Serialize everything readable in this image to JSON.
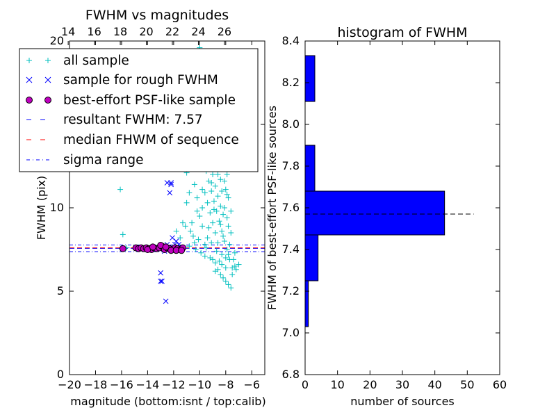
{
  "chart_data": [
    {
      "type": "scatter",
      "title": "FWHM vs magnitudes",
      "xlabel": "magnitude (bottom:isnt / top:calib)",
      "ylabel": "FWHM (pix)",
      "xlim": [
        -20,
        -5
      ],
      "ylim": [
        0,
        20
      ],
      "x_ticks": [
        "−20",
        "−18",
        "−16",
        "−14",
        "−12",
        "−10",
        "−8",
        "−6"
      ],
      "x_tick_values": [
        -20,
        -18,
        -16,
        -14,
        -12,
        -10,
        -8,
        -6
      ],
      "y_ticks": [
        "0",
        "5",
        "10",
        "15",
        "20"
      ],
      "y_tick_values": [
        0,
        5,
        10,
        15,
        20
      ],
      "top_axis": {
        "ticks": [
          "14",
          "16",
          "18",
          "20",
          "22",
          "24",
          "26"
        ],
        "tick_values": [
          14,
          16,
          18,
          20,
          22,
          24,
          26
        ],
        "offset": 34.1
      },
      "legend_placement": "upper-left",
      "series": [
        {
          "name": "all sample",
          "marker": "+",
          "color": "#00bfbf",
          "points": [
            [
              -16.1,
              11.1
            ],
            [
              -15.9,
              8.4
            ],
            [
              -15.6,
              7.6
            ],
            [
              -10.0,
              19.6
            ],
            [
              -9.6,
              19.2
            ],
            [
              -9.0,
              16.0
            ],
            [
              -8.9,
              14.5
            ],
            [
              -8.7,
              13.8
            ],
            [
              -8.5,
              14.2
            ],
            [
              -8.2,
              15.0
            ],
            [
              -8.0,
              13.9
            ],
            [
              -10.5,
              12.6
            ],
            [
              -11.0,
              12.1
            ],
            [
              -10.4,
              11.4
            ],
            [
              -9.8,
              11.1
            ],
            [
              -10.8,
              10.9
            ],
            [
              -11.0,
              10.3
            ],
            [
              -10.6,
              9.1
            ],
            [
              -10.2,
              9.8
            ],
            [
              -11.3,
              9.1
            ],
            [
              -11.1,
              8.9
            ],
            [
              -10.5,
              8.3
            ],
            [
              -11.5,
              8.2
            ],
            [
              -11.8,
              8.6
            ],
            [
              -11.7,
              7.6
            ],
            [
              -11.2,
              7.6
            ],
            [
              -10.8,
              7.7
            ],
            [
              -10.3,
              7.5
            ],
            [
              -9.6,
              7.8
            ],
            [
              -9.2,
              7.0
            ],
            [
              -9.0,
              6.9
            ],
            [
              -8.8,
              6.7
            ],
            [
              -8.6,
              6.3
            ],
            [
              -8.4,
              6.0
            ],
            [
              -8.2,
              5.8
            ],
            [
              -8.0,
              5.6
            ],
            [
              -7.8,
              5.4
            ],
            [
              -7.6,
              5.2
            ],
            [
              -7.5,
              6.0
            ],
            [
              -7.3,
              6.5
            ],
            [
              -7.7,
              6.9
            ],
            [
              -7.9,
              7.5
            ],
            [
              -8.1,
              8.0
            ],
            [
              -8.3,
              8.6
            ],
            [
              -8.5,
              9.2
            ],
            [
              -8.7,
              9.8
            ],
            [
              -8.9,
              10.4
            ],
            [
              -9.1,
              11.0
            ],
            [
              -9.3,
              11.6
            ],
            [
              -9.5,
              12.2
            ],
            [
              -9.7,
              12.8
            ],
            [
              -8.4,
              11.7
            ],
            [
              -8.2,
              12.4
            ],
            [
              -8.0,
              11.1
            ],
            [
              -7.8,
              10.6
            ],
            [
              -7.9,
              9.4
            ],
            [
              -8.1,
              10.0
            ],
            [
              -8.3,
              7.2
            ],
            [
              -8.6,
              7.9
            ],
            [
              -8.8,
              8.5
            ],
            [
              -9.0,
              9.1
            ],
            [
              -9.2,
              9.7
            ],
            [
              -9.4,
              10.3
            ],
            [
              -9.6,
              10.9
            ],
            [
              -9.8,
              8.9
            ],
            [
              -10.0,
              9.5
            ],
            [
              -10.1,
              8.1
            ],
            [
              -9.9,
              7.3
            ],
            [
              -9.4,
              8.2
            ],
            [
              -9.1,
              7.9
            ],
            [
              -8.7,
              7.4
            ],
            [
              -8.5,
              6.8
            ],
            [
              -8.0,
              7.0
            ],
            [
              -7.7,
              7.8
            ],
            [
              -7.6,
              8.5
            ],
            [
              -7.8,
              8.9
            ],
            [
              -8.2,
              9.6
            ],
            [
              -8.4,
              10.1
            ],
            [
              -8.6,
              10.7
            ],
            [
              -8.8,
              11.3
            ],
            [
              -9.0,
              12.0
            ],
            [
              -9.2,
              12.6
            ],
            [
              -8.6,
              13.2
            ],
            [
              -8.1,
              12.9
            ],
            [
              -7.9,
              12.0
            ],
            [
              -8.3,
              11.0
            ],
            [
              -8.9,
              9.9
            ],
            [
              -9.3,
              8.8
            ],
            [
              -9.5,
              7.6
            ],
            [
              -8.0,
              6.4
            ],
            [
              -8.3,
              6.6
            ],
            [
              -7.5,
              6.4
            ],
            [
              -8.8,
              6.2
            ],
            [
              -9.6,
              7.1
            ],
            [
              -10.4,
              7.9
            ],
            [
              -10.7,
              8.6
            ],
            [
              -9.8,
              10.0
            ],
            [
              -10.2,
              10.6
            ],
            [
              -10.0,
              12.4
            ],
            [
              -9.4,
              13.4
            ],
            [
              -8.9,
              13.0
            ],
            [
              -8.3,
              13.5
            ],
            [
              -7.9,
              13.1
            ],
            [
              -8.6,
              12.0
            ],
            [
              -9.1,
              11.5
            ],
            [
              -8.4,
              9.0
            ],
            [
              -8.2,
              8.3
            ],
            [
              -7.8,
              7.2
            ],
            [
              -7.4,
              6.9
            ],
            [
              -7.2,
              6.3
            ],
            [
              -7.0,
              6.6
            ],
            [
              -7.3,
              7.3
            ],
            [
              -7.6,
              9.8
            ],
            [
              -7.9,
              10.8
            ],
            [
              -8.1,
              11.6
            ]
          ]
        },
        {
          "name": "sample for rough FWHM",
          "marker": "x",
          "color": "#0000ff",
          "points": [
            [
              -12.5,
              11.5
            ],
            [
              -12.2,
              11.5
            ],
            [
              -12.2,
              11.4
            ],
            [
              -12.3,
              10.9
            ],
            [
              -13.0,
              6.1
            ],
            [
              -13.0,
              5.6
            ],
            [
              -12.9,
              5.6
            ],
            [
              -12.6,
              4.4
            ],
            [
              -12.1,
              8.2
            ],
            [
              -11.8,
              8.0
            ],
            [
              -11.9,
              7.8
            ],
            [
              -12.5,
              7.8
            ],
            [
              -13.2,
              7.6
            ],
            [
              -12.7,
              7.4
            ],
            [
              -11.6,
              7.8
            ],
            [
              -11.3,
              7.6
            ],
            [
              -13.5,
              7.5
            ],
            [
              -14.1,
              7.6
            ]
          ]
        },
        {
          "name": "best-effort PSF-like sample",
          "marker": "o",
          "color": "#bf00bf",
          "points": [
            [
              -15.9,
              7.55
            ],
            [
              -14.9,
              7.6
            ],
            [
              -14.7,
              7.55
            ],
            [
              -14.5,
              7.6
            ],
            [
              -14.3,
              7.55
            ],
            [
              -14.1,
              7.6
            ],
            [
              -13.9,
              7.55
            ],
            [
              -13.7,
              7.5
            ],
            [
              -13.5,
              7.6
            ],
            [
              -13.3,
              7.55
            ],
            [
              -13.1,
              7.6
            ],
            [
              -12.9,
              7.7
            ],
            [
              -12.7,
              7.5
            ],
            [
              -12.5,
              7.6
            ],
            [
              -12.3,
              7.55
            ],
            [
              -12.1,
              7.5
            ],
            [
              -11.9,
              7.6
            ],
            [
              -11.7,
              7.55
            ],
            [
              -11.5,
              7.5
            ],
            [
              -11.3,
              7.6
            ],
            [
              -13.0,
              7.75
            ],
            [
              -12.6,
              7.65
            ],
            [
              -12.2,
              7.45
            ],
            [
              -11.8,
              7.45
            ],
            [
              -14.0,
              7.5
            ],
            [
              -13.6,
              7.65
            ],
            [
              -11.4,
              7.45
            ]
          ]
        },
        {
          "name": "resultant FWHM: 7.57",
          "style": "dashed",
          "color": "#0000ff",
          "y": 7.57
        },
        {
          "name": "median FHWM of sequence",
          "style": "dashed",
          "color": "#ff0000",
          "y": 7.6
        },
        {
          "name": "sigma range",
          "style": "dash-dot",
          "color": "#0000ff",
          "y": [
            7.37,
            7.77
          ]
        }
      ]
    },
    {
      "type": "bar",
      "orientation": "horizontal",
      "title": "histogram of FWHM",
      "xlabel": "number of sources",
      "ylabel": "FWHM of best-effort PSF-like sources",
      "xlim": [
        0,
        60
      ],
      "ylim": [
        6.8,
        8.4
      ],
      "x_ticks": [
        "0",
        "10",
        "20",
        "30",
        "40",
        "50",
        "60"
      ],
      "x_tick_values": [
        0,
        10,
        20,
        30,
        40,
        50,
        60
      ],
      "y_ticks": [
        "6.8",
        "7.0",
        "7.2",
        "7.4",
        "7.6",
        "7.8",
        "8.0",
        "8.2",
        "8.4"
      ],
      "y_tick_values": [
        6.8,
        7.0,
        7.2,
        7.4,
        7.6,
        7.8,
        8.0,
        8.2,
        8.4
      ],
      "bar_color": "#0000ff",
      "bins": [
        {
          "low": 7.03,
          "high": 7.25,
          "count": 1
        },
        {
          "low": 7.25,
          "high": 7.47,
          "count": 4
        },
        {
          "low": 7.47,
          "high": 7.68,
          "count": 43
        },
        {
          "low": 7.68,
          "high": 7.9,
          "count": 3
        },
        {
          "low": 7.9,
          "high": 8.11,
          "count": 0
        },
        {
          "low": 8.11,
          "high": 8.33,
          "count": 3
        }
      ],
      "reference_line": {
        "y": 7.57,
        "x_end": 52,
        "style": "dashed",
        "color": "#000000"
      }
    }
  ]
}
